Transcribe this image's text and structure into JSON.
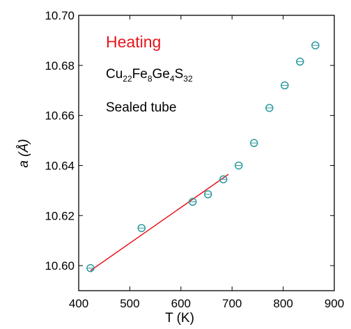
{
  "chart_data": {
    "type": "scatter",
    "xlabel": "T (K)",
    "ylabel": "a (Å)",
    "annotations": {
      "heating": {
        "text": "Heating",
        "color": "#e8141b"
      },
      "formula": [
        {
          "text": "Cu",
          "sub": "22"
        },
        {
          "text": "Fe",
          "sub": "8"
        },
        {
          "text": "Ge",
          "sub": "4"
        },
        {
          "text": "S",
          "sub": "32"
        }
      ],
      "condition": "Sealed tube"
    },
    "x": [
      423,
      523,
      623,
      653,
      683,
      713,
      743,
      773,
      803,
      833,
      863
    ],
    "values": [
      10.599,
      10.615,
      10.6255,
      10.6285,
      10.6345,
      10.64,
      10.649,
      10.663,
      10.672,
      10.6815,
      10.688
    ],
    "color": "#2a9a9e",
    "fit_line": {
      "x": [
        423,
        693
      ],
      "y": [
        10.598,
        10.6365
      ],
      "color": "#e8141b"
    },
    "xlim": [
      400,
      900
    ],
    "xticks": [
      400,
      500,
      600,
      700,
      800,
      900
    ],
    "ylim": [
      10.59,
      10.7
    ],
    "yticks": [
      {
        "value": 10.6,
        "label": "10.60"
      },
      10.62,
      10.64,
      10.66,
      10.68,
      {
        "value": 10.7,
        "label": "10.70"
      }
    ]
  }
}
